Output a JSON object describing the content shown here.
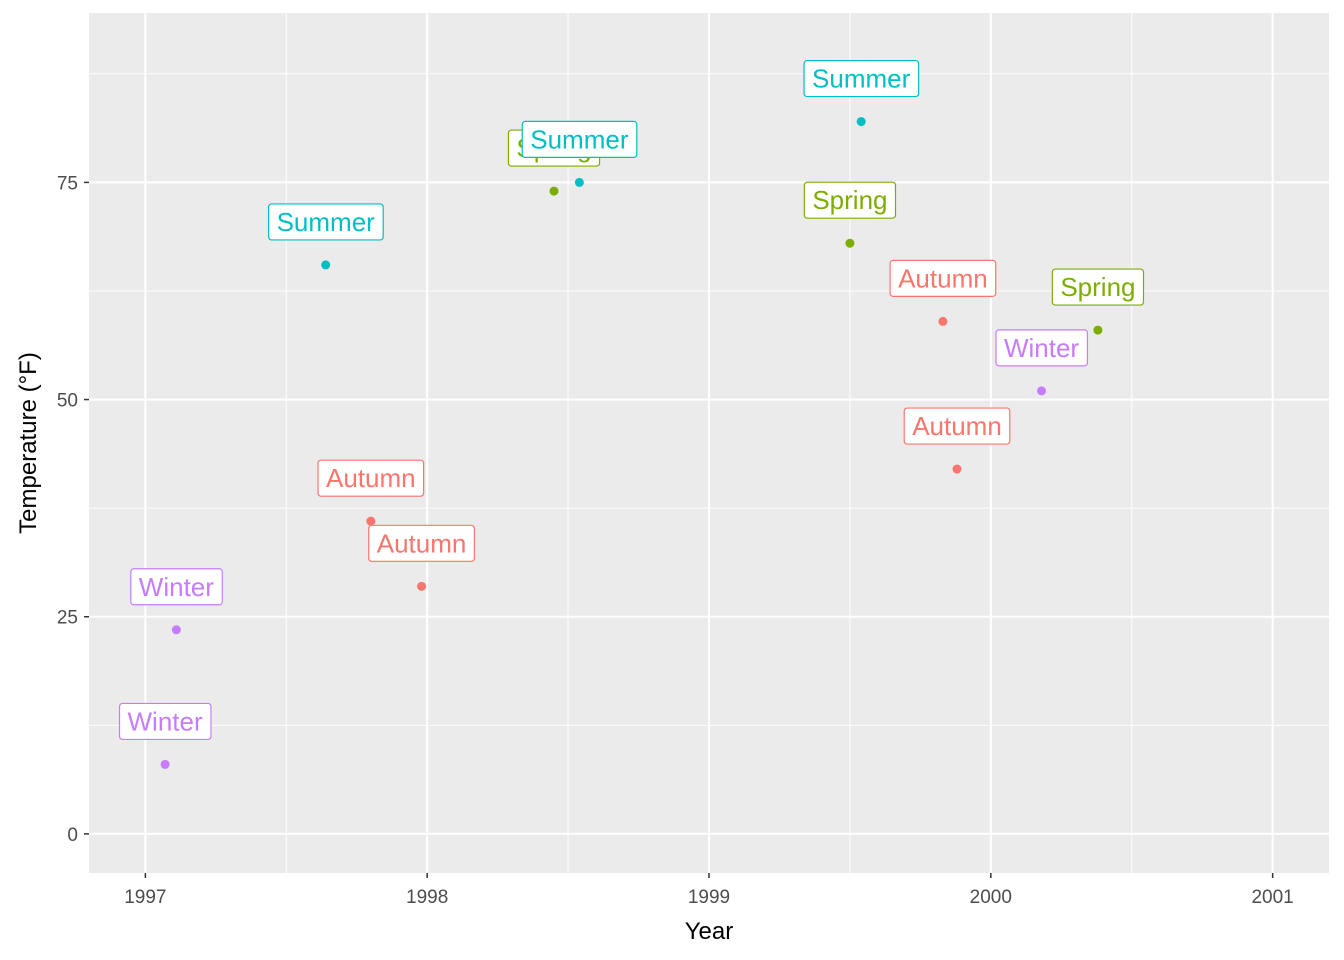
{
  "chart_data": {
    "type": "scatter",
    "xlabel": "Year",
    "ylabel": "Temperature (°F)",
    "xlim": [
      1996.8,
      2001.2
    ],
    "ylim": [
      -4.5,
      94.5
    ],
    "x_ticks": [
      1997,
      1998,
      1999,
      2000,
      2001
    ],
    "x_tick_labels": [
      "1997",
      "1998",
      "1999",
      "2000",
      "2001"
    ],
    "y_ticks": [
      0,
      25,
      50,
      75
    ],
    "y_tick_labels": [
      "0",
      "25",
      "50",
      "75"
    ],
    "grid": true,
    "legend": "none",
    "colors": {
      "Autumn": "#F8766D",
      "Spring": "#7CAE00",
      "Summer": "#00BFC4",
      "Winter": "#C77CFF"
    },
    "points": [
      {
        "x": 1997.07,
        "y": 8.0,
        "season": "Winter",
        "label": "Winter"
      },
      {
        "x": 1997.11,
        "y": 23.5,
        "season": "Winter",
        "label": "Winter"
      },
      {
        "x": 1997.64,
        "y": 65.5,
        "season": "Summer",
        "label": "Summer"
      },
      {
        "x": 1997.8,
        "y": 36.0,
        "season": "Autumn",
        "label": "Autumn"
      },
      {
        "x": 1997.98,
        "y": 28.5,
        "season": "Autumn",
        "label": "Autumn"
      },
      {
        "x": 1998.45,
        "y": 74.0,
        "season": "Spring",
        "label": "Spring"
      },
      {
        "x": 1998.54,
        "y": 75.0,
        "season": "Summer",
        "label": "Summer"
      },
      {
        "x": 1999.5,
        "y": 68.0,
        "season": "Spring",
        "label": "Spring"
      },
      {
        "x": 1999.54,
        "y": 82.0,
        "season": "Summer",
        "label": "Summer"
      },
      {
        "x": 1999.83,
        "y": 59.0,
        "season": "Autumn",
        "label": "Autumn"
      },
      {
        "x": 1999.88,
        "y": 42.0,
        "season": "Autumn",
        "label": "Autumn"
      },
      {
        "x": 2000.18,
        "y": 51.0,
        "season": "Winter",
        "label": "Winter"
      },
      {
        "x": 2000.38,
        "y": 58.0,
        "season": "Spring",
        "label": "Spring"
      }
    ]
  }
}
